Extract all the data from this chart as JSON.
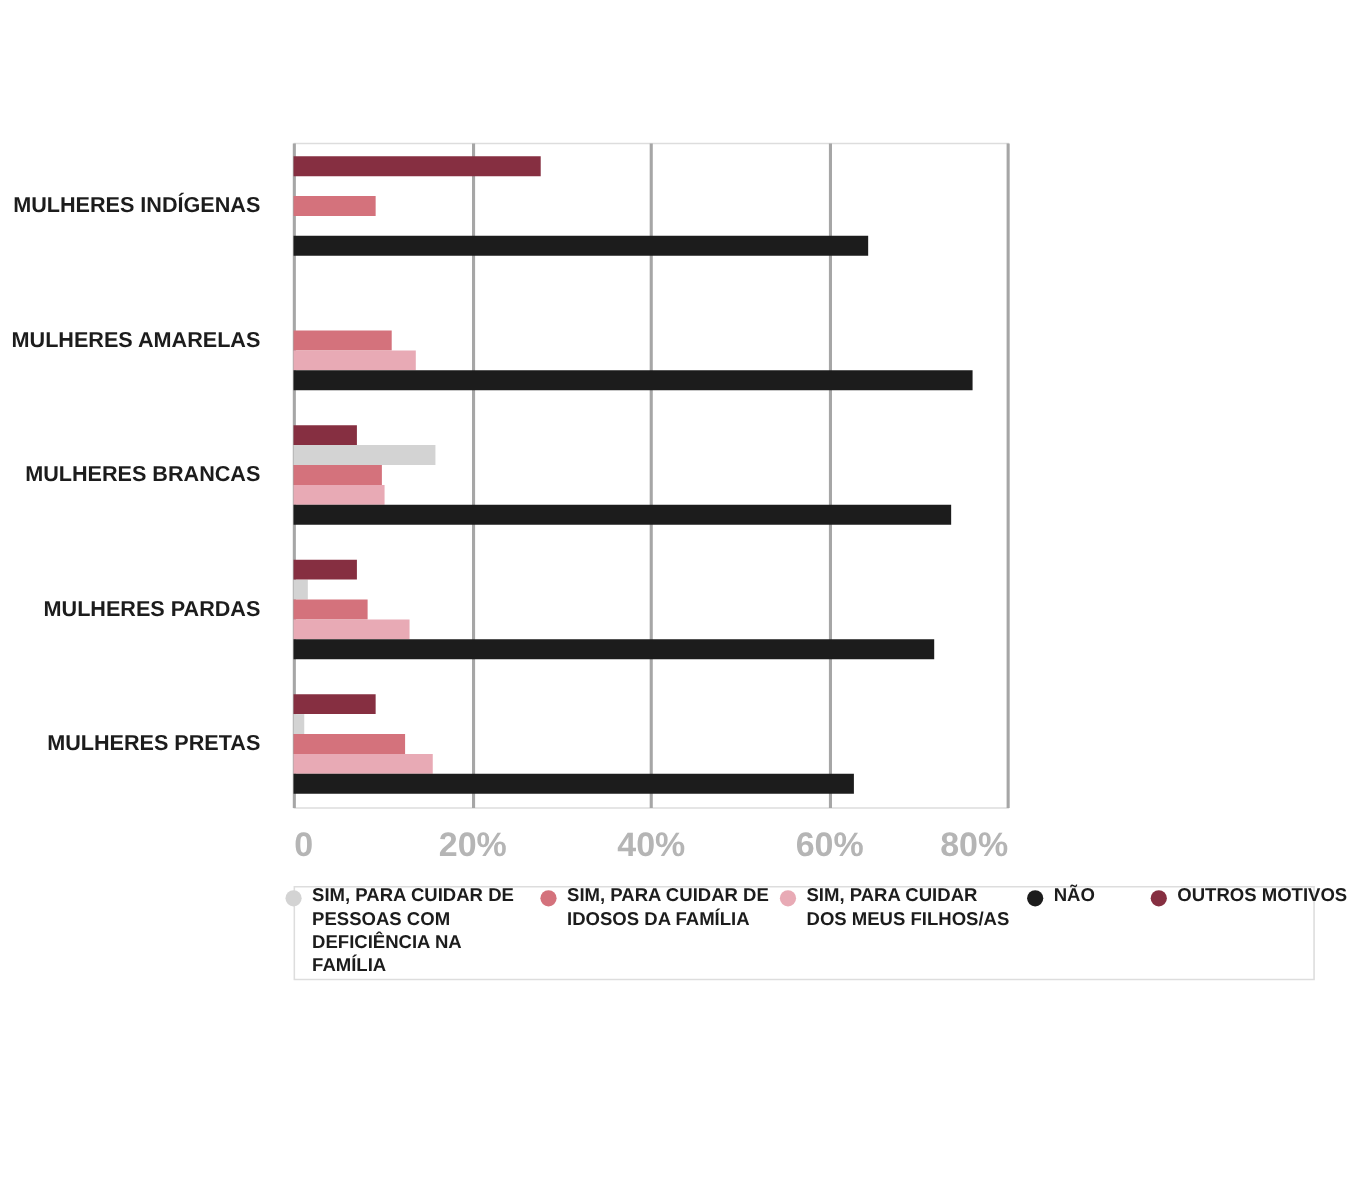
{
  "chart_data": {
    "type": "bar",
    "orientation": "horizontal",
    "categories": [
      "MULHERES INDÍGENAS",
      "MULHERES AMARELAS",
      "MULHERES BRANCAS",
      "MULHERES PARDAS",
      "MULHERES PRETAS"
    ],
    "series": [
      {
        "name": "SIM, PARA CUIDAR DE PESSOAS COM DEFICIÊNCIA NA FAMÍLIA",
        "color": "#d3d3d3",
        "values": [
          null,
          null,
          15.9,
          1.6,
          1.2
        ]
      },
      {
        "name": "SIM, PARA CUIDAR DE IDOSOS DA FAMÍLIA",
        "color": "#d4727c",
        "values": [
          9.2,
          11.0,
          9.9,
          8.3,
          12.5
        ]
      },
      {
        "name": "SIM, PARA CUIDAR DOS MEUS FILHOS/AS",
        "color": "#e8aab5",
        "values": [
          null,
          13.7,
          10.2,
          13.0,
          15.6
        ]
      },
      {
        "name": "NÃO",
        "color": "#1c1c1c",
        "values": [
          64.4,
          76.1,
          73.7,
          71.8,
          62.8
        ]
      },
      {
        "name": "OUTROS MOTIVOS",
        "color": "#862f41",
        "values": [
          27.7,
          null,
          7.1,
          7.1,
          9.2
        ]
      }
    ],
    "xlim": [
      0,
      80
    ],
    "xticks": [
      {
        "value": 0,
        "label": "0"
      },
      {
        "value": 20,
        "label": "20%"
      },
      {
        "value": 40,
        "label": "40%"
      },
      {
        "value": 60,
        "label": "60%"
      },
      {
        "value": 80,
        "label": "80%"
      }
    ],
    "grid": "x",
    "legend": "bottom"
  }
}
